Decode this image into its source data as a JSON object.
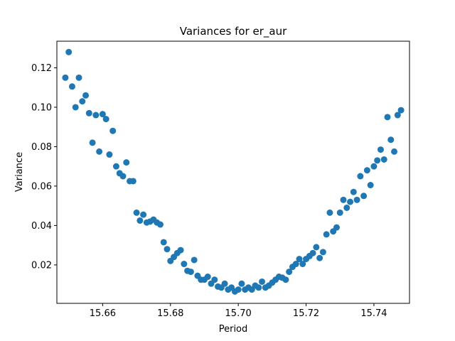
{
  "chart_data": {
    "type": "scatter",
    "title": "Variances for er_aur",
    "xlabel": "Period",
    "ylabel": "Variance",
    "xlim": [
      15.6465,
      15.7505
    ],
    "ylim": [
      0.0005,
      0.1335
    ],
    "xticks": [
      15.66,
      15.68,
      15.7,
      15.72,
      15.74
    ],
    "xtick_labels": [
      "15.66",
      "15.68",
      "15.70",
      "15.72",
      "15.74"
    ],
    "yticks": [
      0.02,
      0.04,
      0.06,
      0.08,
      0.1,
      0.12
    ],
    "ytick_labels": [
      "0.02",
      "0.04",
      "0.06",
      "0.08",
      "0.10",
      "0.12"
    ],
    "grid": false,
    "marker_color": "#1f77b4",
    "x": [
      15.649,
      15.65,
      15.651,
      15.652,
      15.653,
      15.654,
      15.655,
      15.656,
      15.657,
      15.658,
      15.659,
      15.66,
      15.661,
      15.662,
      15.663,
      15.664,
      15.665,
      15.666,
      15.667,
      15.668,
      15.669,
      15.67,
      15.671,
      15.672,
      15.673,
      15.674,
      15.675,
      15.676,
      15.677,
      15.678,
      15.679,
      15.68,
      15.681,
      15.682,
      15.683,
      15.684,
      15.685,
      15.686,
      15.687,
      15.688,
      15.689,
      15.69,
      15.691,
      15.692,
      15.693,
      15.694,
      15.695,
      15.696,
      15.697,
      15.698,
      15.699,
      15.7,
      15.701,
      15.702,
      15.703,
      15.704,
      15.705,
      15.706,
      15.707,
      15.708,
      15.709,
      15.71,
      15.711,
      15.712,
      15.713,
      15.714,
      15.715,
      15.716,
      15.717,
      15.718,
      15.719,
      15.72,
      15.721,
      15.722,
      15.723,
      15.724,
      15.725,
      15.726,
      15.727,
      15.728,
      15.729,
      15.73,
      15.731,
      15.732,
      15.733,
      15.734,
      15.735,
      15.736,
      15.737,
      15.738,
      15.739,
      15.74,
      15.741,
      15.742,
      15.743,
      15.744,
      15.745,
      15.746,
      15.747,
      15.748
    ],
    "y": [
      0.115,
      0.128,
      0.1105,
      0.1,
      0.115,
      0.103,
      0.106,
      0.097,
      0.082,
      0.096,
      0.0775,
      0.0965,
      0.094,
      0.076,
      0.088,
      0.07,
      0.0665,
      0.065,
      0.072,
      0.0625,
      0.0625,
      0.0465,
      0.0425,
      0.0455,
      0.0415,
      0.042,
      0.043,
      0.0415,
      0.0405,
      0.0315,
      0.028,
      0.022,
      0.024,
      0.026,
      0.0275,
      0.0205,
      0.017,
      0.0165,
      0.0225,
      0.0145,
      0.0125,
      0.0125,
      0.014,
      0.0105,
      0.0125,
      0.009,
      0.0085,
      0.0105,
      0.0075,
      0.0085,
      0.0065,
      0.0075,
      0.0105,
      0.0075,
      0.0085,
      0.0075,
      0.0095,
      0.0085,
      0.0115,
      0.0085,
      0.0095,
      0.011,
      0.0125,
      0.014,
      0.0135,
      0.0125,
      0.0165,
      0.019,
      0.0205,
      0.023,
      0.0205,
      0.023,
      0.0245,
      0.026,
      0.029,
      0.0235,
      0.0265,
      0.0355,
      0.0465,
      0.037,
      0.039,
      0.0465,
      0.053,
      0.049,
      0.052,
      0.057,
      0.053,
      0.065,
      0.055,
      0.068,
      0.0605,
      0.07,
      0.073,
      0.0785,
      0.0735,
      0.095,
      0.0835,
      0.0775,
      0.096,
      0.0985
    ]
  }
}
